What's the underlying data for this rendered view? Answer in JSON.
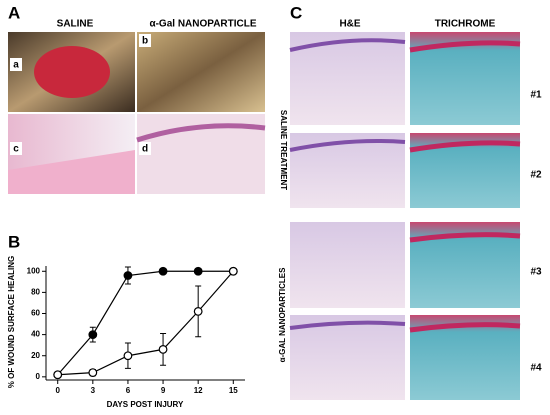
{
  "panel_a": {
    "label": "A",
    "columns": [
      "SALINE",
      "α-Gal NANOPARTICLE"
    ],
    "image_labels": [
      "a",
      "b",
      "c",
      "d"
    ]
  },
  "chart_data": {
    "type": "line",
    "panel_label": "B",
    "xlabel": "DAYS POST INJURY",
    "ylabel": "% OF WOUND SURFACE HEALING",
    "x": [
      0,
      3,
      6,
      9,
      12,
      15
    ],
    "series": [
      {
        "color": "#000000",
        "marker": "filled",
        "values": [
          2,
          40,
          96,
          100,
          100,
          100
        ],
        "errors": [
          0,
          7,
          8,
          0,
          0,
          0
        ]
      },
      {
        "color": "#000000",
        "marker": "open",
        "values": [
          2,
          4,
          20,
          26,
          62,
          100
        ],
        "errors": [
          0,
          3,
          12,
          15,
          24,
          0
        ]
      }
    ],
    "xlim": [
      -1,
      16
    ],
    "ylim": [
      -3,
      105
    ],
    "xticks": [
      0,
      3,
      6,
      9,
      12,
      15
    ],
    "yticks": [
      0,
      20,
      40,
      60,
      80,
      100
    ]
  },
  "panel_c": {
    "label": "C",
    "columns": [
      "H&E",
      "TRICHROME"
    ],
    "groups": [
      "SALINE TREATMENT",
      "α-GAL NANOPARTICLES"
    ],
    "rows": [
      "#1",
      "#2",
      "#3",
      "#4"
    ]
  }
}
